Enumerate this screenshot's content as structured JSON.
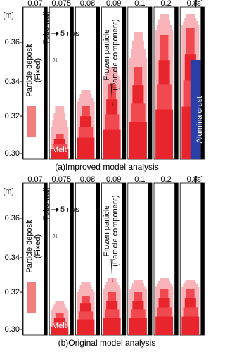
{
  "panels": [
    {
      "time_labels": [
        "0.07",
        "0.075",
        "0.08",
        "0.09",
        "0.1",
        "0.2",
        "0.8"
      ],
      "time_unit": "[s]",
      "y_unit": "[m]",
      "y_ticks": [
        "0.36",
        "0.34",
        "0.32",
        "0.30"
      ],
      "deposit_label": "Particle deposit",
      "deposit_sub": "(Fixed)",
      "wall_label": "Tube wall",
      "velocity_label": "5 m/s",
      "step_label": "01",
      "frozen_label": "Frozen particle",
      "frozen_sub": "(Particle component)",
      "melt_label": "Melt",
      "crust_label": "Alumina crust",
      "caption": "(a)Improved model analysis"
    },
    {
      "time_labels": [
        "0.07",
        "0.075",
        "0.08",
        "0.09",
        "0.1",
        "0.2",
        "0.8"
      ],
      "time_unit": "[s]",
      "y_unit": "[m]",
      "y_ticks": [
        "0.36",
        "0.34",
        "0.32",
        "0.30"
      ],
      "deposit_label": "Particle deposit",
      "deposit_sub": "(Fixed)",
      "wall_label": "Tube wall",
      "velocity_label": "5 m/s",
      "step_label": "01",
      "frozen_label": "Frozen particle",
      "frozen_sub": "(Particle component)",
      "melt_label": "Melt",
      "caption": "(b)Original model analysis"
    }
  ]
}
